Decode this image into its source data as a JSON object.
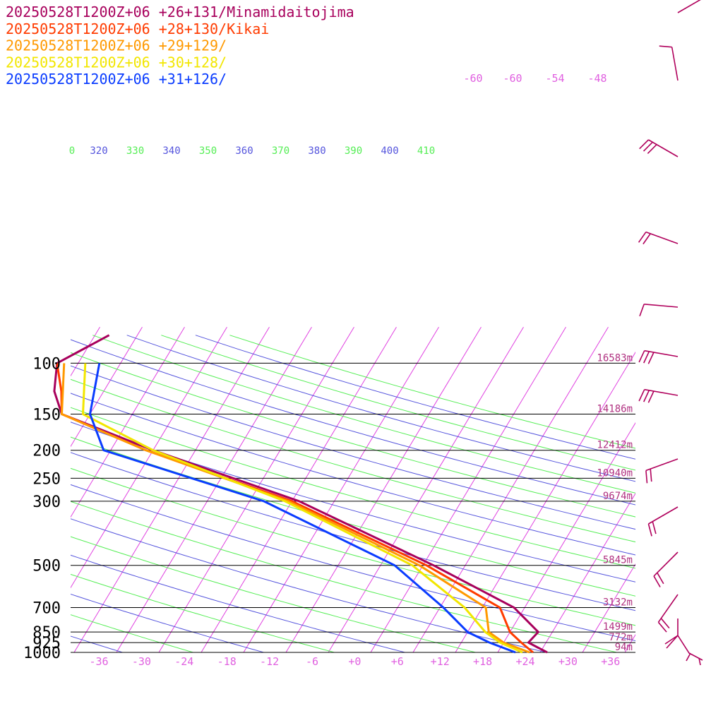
{
  "legend": [
    {
      "text": "20250528T1200Z+06 +26+131/Minamidaitojima",
      "color": "#a8005c"
    },
    {
      "text": "20250528T1200Z+06 +28+130/Kikai",
      "color": "#ff3b00"
    },
    {
      "text": "20250528T1200Z+06 +29+129/",
      "color": "#ff9900"
    },
    {
      "text": "20250528T1200Z+06 +30+128/",
      "color": "#f2e600"
    },
    {
      "text": "20250528T1200Z+06 +31+126/",
      "color": "#0a3cff"
    }
  ],
  "chart_data": {
    "type": "line",
    "chart_kind": "skew-T log-p thermodynamic diagram",
    "pressure_levels": [
      {
        "p": 100,
        "label": "100",
        "height_label": "16583m"
      },
      {
        "p": 150,
        "label": "150",
        "height_label": "14186m"
      },
      {
        "p": 200,
        "label": "200",
        "height_label": "12412m"
      },
      {
        "p": 250,
        "label": "250",
        "height_label": "10940m"
      },
      {
        "p": 300,
        "label": "300",
        "height_label": "9674m"
      },
      {
        "p": 500,
        "label": "500",
        "height_label": "5845m"
      },
      {
        "p": 700,
        "label": "700",
        "height_label": "3132m"
      },
      {
        "p": 850,
        "label": "850",
        "height_label": "1499m"
      },
      {
        "p": 925,
        "label": "925",
        "height_label": "772m"
      },
      {
        "p": 1000,
        "label": "1000",
        "height_label": "94m"
      }
    ],
    "x_ticks": [
      "-36",
      "-30",
      "-24",
      "-18",
      "-12",
      "-6",
      "+0",
      "+6",
      "+12",
      "+18",
      "+24",
      "+30",
      "+36"
    ],
    "isotherm_labels": [
      "-60",
      "-60",
      "-54",
      "-48"
    ],
    "theta_labels": [
      {
        "text": "0",
        "color": "#55ee55"
      },
      {
        "text": "320",
        "color": "#5555dd"
      },
      {
        "text": "330",
        "color": "#55ee55"
      },
      {
        "text": "340",
        "color": "#5555dd"
      },
      {
        "text": "350",
        "color": "#55ee55"
      },
      {
        "text": "360",
        "color": "#5555dd"
      },
      {
        "text": "370",
        "color": "#55ee55"
      },
      {
        "text": "380",
        "color": "#5555dd"
      },
      {
        "text": "390",
        "color": "#55ee55"
      },
      {
        "text": "400",
        "color": "#5555dd"
      },
      {
        "text": "410",
        "color": "#55ee55"
      }
    ],
    "series": [
      {
        "name": "20250528T1200Z+06 +26+131/Minamidaitojima",
        "color": "#a8005c",
        "temperature": [
          [
            1000,
            27
          ],
          [
            925,
            23.5
          ],
          [
            850,
            24
          ],
          [
            700,
            18.5
          ],
          [
            500,
            3.5
          ],
          [
            300,
            -21
          ],
          [
            200,
            -46
          ],
          [
            150,
            -62
          ],
          [
            125,
            -65
          ],
          [
            100,
            -67
          ],
          [
            80,
            -62
          ]
        ]
      },
      {
        "name": "20250528T1200Z+06 +28+130/Kikai",
        "color": "#ff3b00",
        "temperature": [
          [
            1000,
            25
          ],
          [
            925,
            22.5
          ],
          [
            850,
            20
          ],
          [
            700,
            16.5
          ],
          [
            500,
            2.5
          ],
          [
            300,
            -22
          ],
          [
            200,
            -47
          ],
          [
            150,
            -62
          ],
          [
            125,
            -64
          ],
          [
            100,
            -67
          ]
        ]
      },
      {
        "name": "20250528T1200Z+06 +29+129/",
        "color": "#ff9900",
        "temperature": [
          [
            1000,
            24.5
          ],
          [
            925,
            20
          ],
          [
            850,
            17
          ],
          [
            700,
            14.5
          ],
          [
            500,
            1.5
          ],
          [
            300,
            -22.5
          ],
          [
            200,
            -47
          ],
          [
            150,
            -62
          ],
          [
            100,
            -66
          ]
        ]
      },
      {
        "name": "20250528T1200Z+06 +30+128/",
        "color": "#f2e600",
        "temperature": [
          [
            1000,
            23.5
          ],
          [
            925,
            19.5
          ],
          [
            850,
            16.5
          ],
          [
            700,
            11.5
          ],
          [
            500,
            0.5
          ],
          [
            300,
            -23
          ],
          [
            200,
            -46
          ],
          [
            150,
            -59
          ],
          [
            100,
            -63
          ]
        ]
      },
      {
        "name": "20250528T1200Z+06 +31+126/",
        "color": "#0a3cff",
        "temperature": [
          [
            1000,
            22.5
          ],
          [
            925,
            18
          ],
          [
            850,
            14
          ],
          [
            700,
            8.5
          ],
          [
            500,
            -2
          ],
          [
            300,
            -26
          ],
          [
            200,
            -53
          ],
          [
            150,
            -58
          ],
          [
            100,
            -61
          ]
        ]
      }
    ],
    "grid": true
  }
}
